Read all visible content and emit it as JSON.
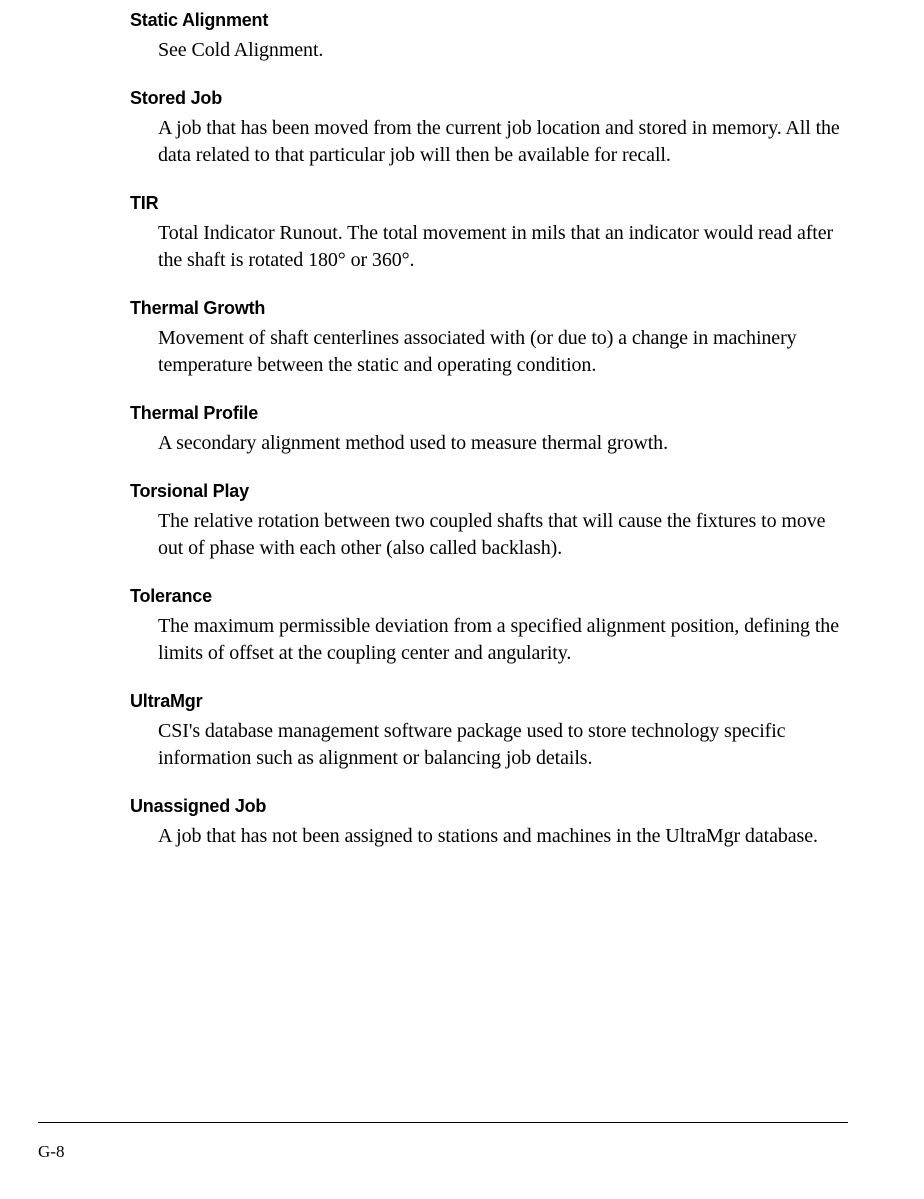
{
  "entries": [
    {
      "term": "Static Alignment",
      "definition": "See Cold Alignment."
    },
    {
      "term": "Stored Job",
      "definition": "A job that has been moved from the current job location and stored in memory. All the data related to that particular job will then be available for recall."
    },
    {
      "term": "TIR",
      "definition": "Total Indicator Runout. The total movement in mils that an indicator would read after the shaft is rotated 180° or 360°."
    },
    {
      "term": "Thermal Growth",
      "definition": "Movement of shaft centerlines associated with (or due to) a change in machinery temperature between the static and operating condition."
    },
    {
      "term": "Thermal Profile",
      "definition": "A secondary alignment method used to measure thermal growth."
    },
    {
      "term": "Torsional Play",
      "definition": "The relative rotation between two coupled shafts that will cause the fixtures to move out of phase with each other (also called backlash)."
    },
    {
      "term": "Tolerance",
      "definition": "The maximum permissible deviation from a specified alignment position, defining the limits of offset at the coupling center and angularity."
    },
    {
      "term": "UltraMgr",
      "definition": "CSI's database management software package used to store technology specific information such as alignment or balancing job details."
    },
    {
      "term": "Unassigned Job",
      "definition": "A job that has not been assigned to stations and machines in the UltraMgr database."
    }
  ],
  "page_number": "G-8"
}
